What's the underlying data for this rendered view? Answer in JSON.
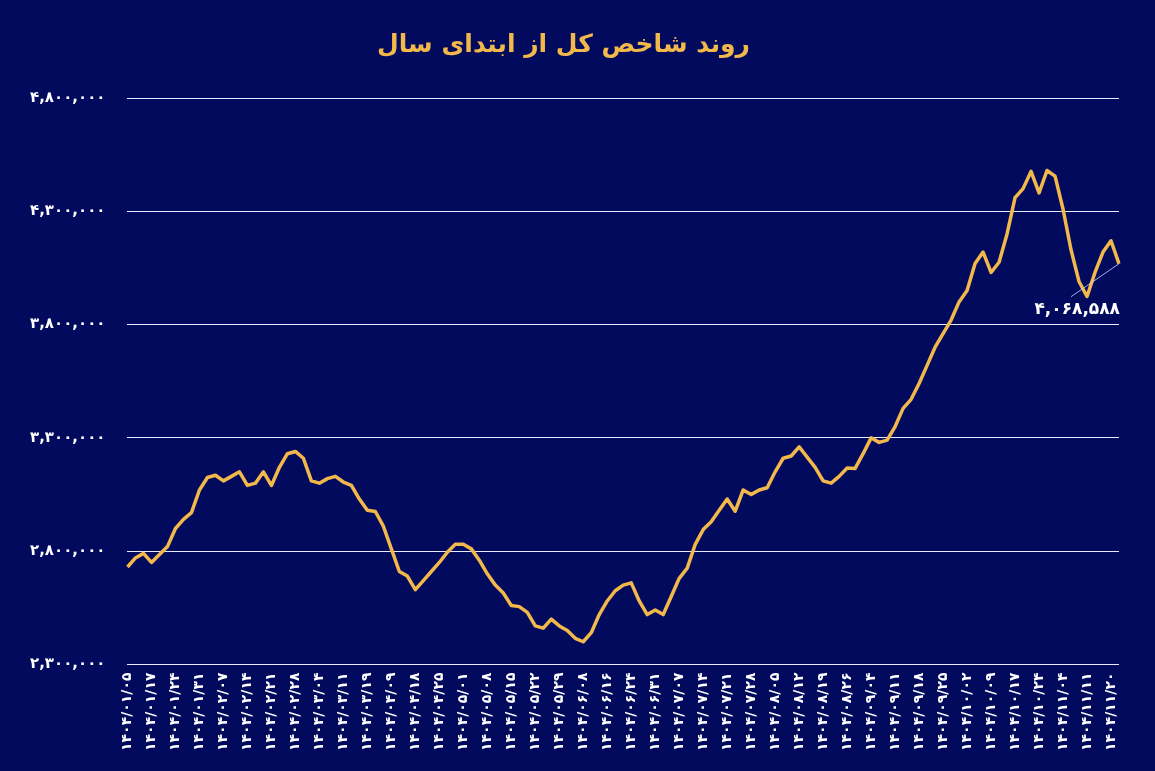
{
  "chart_data": {
    "type": "line",
    "title": "روند شاخص کل از ابتدای سال",
    "categories": [
      "۱۴۰۴/۰۱/۰۵",
      null,
      null,
      "۱۴۰۴/۰۱/۱۷",
      null,
      null,
      "۱۴۰۴/۰۱/۲۴",
      null,
      null,
      "۱۴۰۴/۰۱/۳۱",
      null,
      null,
      "۱۴۰۴/۰۲/۰۷",
      null,
      null,
      "۱۴۰۴/۰۲/۱۴",
      null,
      null,
      "۱۴۰۴/۰۲/۲۱",
      null,
      null,
      "۱۴۰۴/۰۲/۲۸",
      null,
      null,
      "۱۴۰۴/۰۳/۰۴",
      null,
      null,
      "۱۴۰۴/۰۳/۱۱",
      null,
      null,
      "۱۴۰۴/۰۳/۱۹",
      null,
      null,
      "۱۴۰۴/۰۴/۰۹",
      null,
      null,
      "۱۴۰۴/۰۴/۱۸",
      null,
      null,
      "۱۴۰۴/۰۴/۲۵",
      null,
      null,
      "۱۴۰۴/۰۵/۰۱",
      null,
      null,
      "۱۴۰۴/۰۵/۰۸",
      null,
      null,
      "۱۴۰۴/۰۵/۱۵",
      null,
      null,
      "۱۴۰۴/۰۵/۲۲",
      null,
      null,
      "۱۴۰۴/۰۵/۲۹",
      null,
      null,
      "۱۴۰۴/۰۶/۰۸",
      null,
      null,
      "۱۴۰۴/۰۶/۱۶",
      null,
      null,
      "۱۴۰۴/۰۶/۲۴",
      null,
      null,
      "۱۴۰۴/۰۶/۳۱",
      null,
      null,
      "۱۴۰۴/۰۷/۰۷",
      null,
      null,
      "۱۴۰۴/۰۷/۱۴",
      null,
      null,
      "۱۴۰۴/۰۷/۲۱",
      null,
      null,
      "۱۴۰۴/۰۷/۲۸",
      null,
      null,
      "۱۴۰۴/۰۸/۰۵",
      null,
      null,
      "۱۴۰۴/۰۸/۱۲",
      null,
      null,
      "۱۴۰۴/۰۸/۱۹",
      null,
      null,
      "۱۴۰۴/۰۸/۲۶",
      null,
      null,
      "۱۴۰۴/۰۹/۰۴",
      null,
      null,
      "۱۴۰۴/۰۹/۱۱",
      null,
      null,
      "۱۴۰۴/۰۹/۱۸",
      null,
      null,
      "۱۴۰۴/۰۹/۲۵",
      null,
      null,
      "۱۴۰۴/۱۰/۰۲",
      null,
      null,
      "۱۴۰۴/۱۰/۰۹",
      null,
      null,
      "۱۴۰۴/۱۰/۱۷",
      null,
      null,
      "۱۴۰۴/۱۰/۲۴",
      null,
      null,
      "۱۴۰۴/۱۱/۰۴",
      null,
      null,
      "۱۴۰۴/۱۱/۱۱",
      null,
      null,
      "۱۴۰۴/۱۱/۲۰",
      null
    ],
    "series": [
      {
        "color": "#f2b84b",
        "values": [
          2730000,
          2770000,
          2790000,
          2750000,
          2785000,
          2820000,
          2900000,
          2940000,
          2970000,
          3070000,
          3125000,
          3135000,
          3110000,
          3130000,
          3150000,
          3090000,
          3100000,
          3150000,
          3090000,
          3170000,
          3230000,
          3240000,
          3210000,
          3110000,
          3100000,
          3120000,
          3130000,
          3105000,
          3090000,
          3030000,
          2980000,
          2975000,
          2910000,
          2810000,
          2710000,
          2690000,
          2630000,
          2670000,
          2710000,
          2750000,
          2795000,
          2830000,
          2830000,
          2810000,
          2760000,
          2700000,
          2650000,
          2615000,
          2560000,
          2555000,
          2530000,
          2470000,
          2460000,
          2500000,
          2470000,
          2450000,
          2415000,
          2400000,
          2440000,
          2520000,
          2580000,
          2625000,
          2650000,
          2660000,
          2580000,
          2520000,
          2540000,
          2520000,
          2600000,
          2680000,
          2725000,
          2830000,
          2895000,
          2930000,
          2980000,
          3030000,
          2976000,
          3070000,
          3050000,
          3070000,
          3080000,
          3150000,
          3210000,
          3220000,
          3260000,
          3215000,
          3170000,
          3110000,
          3100000,
          3130000,
          3167000,
          3165000,
          3230000,
          3300000,
          3280000,
          3290000,
          3350000,
          3430000,
          3470000,
          3540000,
          3620000,
          3700000,
          3760000,
          3820000,
          3900000,
          3950000,
          4070000,
          4120000,
          4030000,
          4075000,
          4200000,
          4360000,
          4400000,
          4476000,
          4381000,
          4480000,
          4455000,
          4310000,
          4130000,
          3990000,
          3924000,
          4030000,
          4120000,
          4170000,
          4068588
        ]
      }
    ],
    "ylim": [
      2300000,
      4800000
    ],
    "yticks": [
      {
        "value": 2300000,
        "label": "۲,۳۰۰,۰۰۰"
      },
      {
        "value": 2800000,
        "label": "۲,۸۰۰,۰۰۰"
      },
      {
        "value": 3300000,
        "label": "۳,۳۰۰,۰۰۰"
      },
      {
        "value": 3800000,
        "label": "۳,۸۰۰,۰۰۰"
      },
      {
        "value": 4300000,
        "label": "۴,۳۰۰,۰۰۰"
      },
      {
        "value": 4800000,
        "label": "۴,۸۰۰,۰۰۰"
      }
    ],
    "grid": "y",
    "annotations": [
      {
        "text": "۴,۰۶۸,۵۸۸",
        "y": 4068588
      }
    ]
  }
}
